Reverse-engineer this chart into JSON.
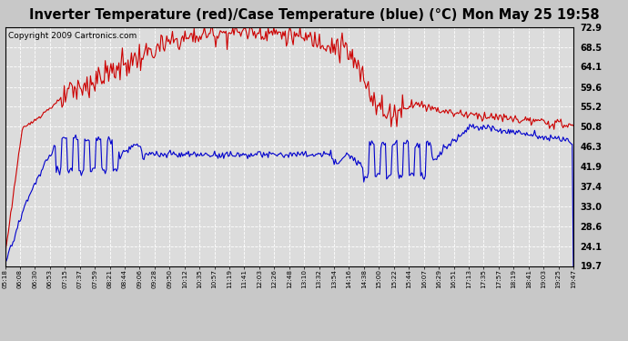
{
  "title": "Inverter Temperature (red)/Case Temperature (blue) (°C) Mon May 25 19:58",
  "copyright": "Copyright 2009 Cartronics.com",
  "yticks": [
    19.7,
    24.1,
    28.6,
    33.0,
    37.4,
    41.9,
    46.3,
    50.8,
    55.2,
    59.6,
    64.1,
    68.5,
    72.9
  ],
  "ylim": [
    19.7,
    72.9
  ],
  "xtick_labels": [
    "05:18",
    "06:08",
    "06:30",
    "06:53",
    "07:15",
    "07:37",
    "07:59",
    "08:21",
    "08:44",
    "09:06",
    "09:28",
    "09:50",
    "10:12",
    "10:35",
    "10:57",
    "11:19",
    "11:41",
    "12:03",
    "12:26",
    "12:48",
    "13:10",
    "13:32",
    "13:54",
    "14:16",
    "14:38",
    "15:00",
    "15:22",
    "15:44",
    "16:07",
    "16:29",
    "16:51",
    "17:13",
    "17:35",
    "17:57",
    "18:19",
    "18:41",
    "19:03",
    "19:25",
    "19:47"
  ],
  "bg_color": "#c8c8c8",
  "plot_bg_color": "#dcdcdc",
  "grid_color": "#ffffff",
  "red_color": "#cc0000",
  "blue_color": "#0000cc",
  "title_fontsize": 10.5,
  "copyright_fontsize": 6.5
}
